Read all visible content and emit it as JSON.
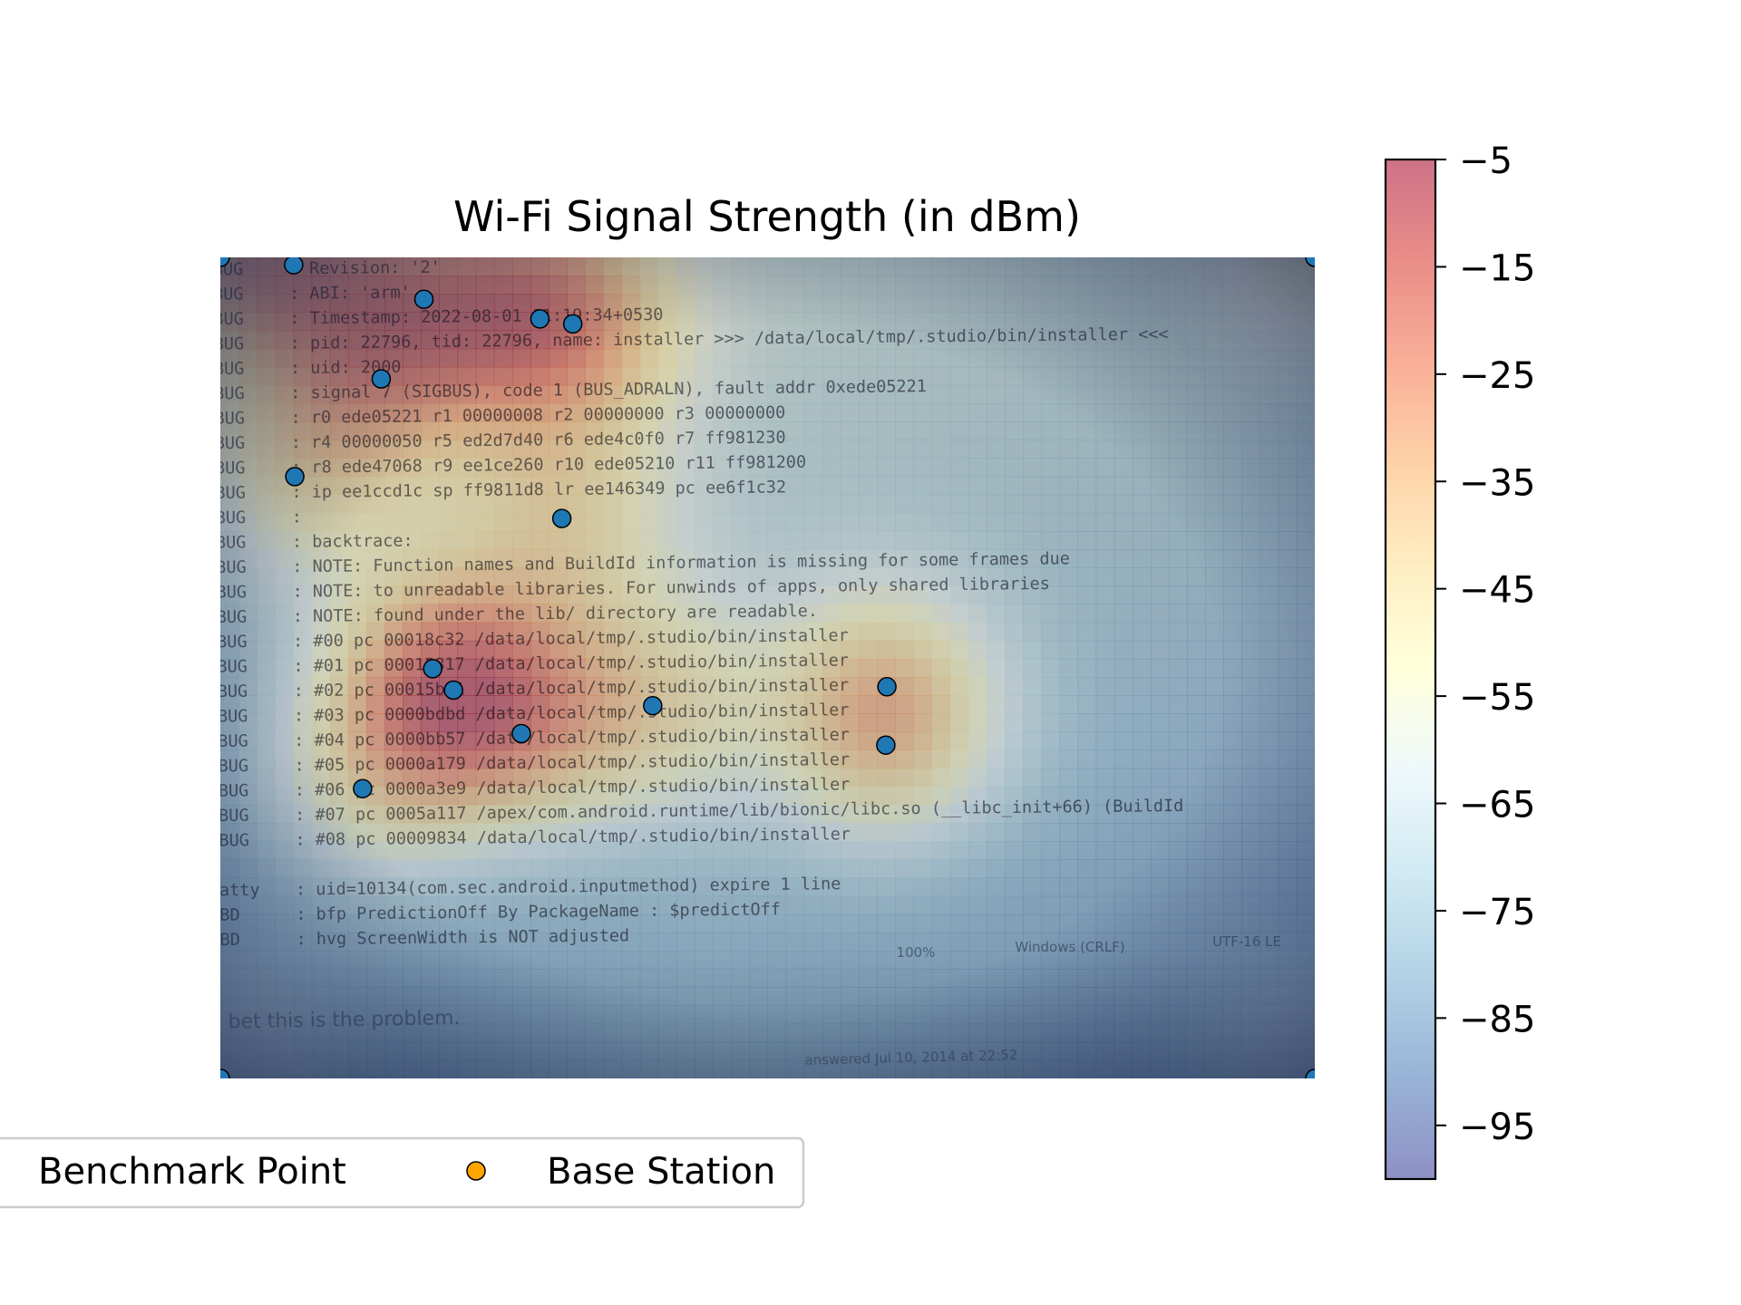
{
  "chart_data": {
    "type": "heatmap",
    "title": "Wi-Fi Signal Strength (in dBm)",
    "xlabel": "",
    "ylabel": "",
    "colorbar": {
      "min": -100,
      "max": -5,
      "ticks": [
        -5,
        -15,
        -25,
        -35,
        -45,
        -55,
        -65,
        -75,
        -85,
        -95
      ],
      "tick_labels": [
        "−5",
        "−15",
        "−25",
        "−35",
        "−45",
        "−55",
        "−65",
        "−75",
        "−85",
        "−95"
      ],
      "colormap": "RdYlBu_r",
      "colors": [
        "#313695",
        "#4575b4",
        "#74add1",
        "#abd9e9",
        "#e0f3f8",
        "#ffffbf",
        "#fee090",
        "#fdae61",
        "#f46d43",
        "#d73027",
        "#a50026"
      ]
    },
    "extent": {
      "x": [
        0,
        1
      ],
      "y": [
        0,
        1
      ]
    },
    "benchmark_points": [
      {
        "x": 0.067,
        "y": 0.991
      },
      {
        "x": 0.186,
        "y": 0.949
      },
      {
        "x": 0.292,
        "y": 0.925
      },
      {
        "x": 0.322,
        "y": 0.919
      },
      {
        "x": 0.147,
        "y": 0.852
      },
      {
        "x": 0.068,
        "y": 0.733
      },
      {
        "x": 0.312,
        "y": 0.682
      },
      {
        "x": 0.194,
        "y": 0.499
      },
      {
        "x": 0.213,
        "y": 0.473
      },
      {
        "x": 0.395,
        "y": 0.454
      },
      {
        "x": 0.609,
        "y": 0.477
      },
      {
        "x": 0.275,
        "y": 0.42
      },
      {
        "x": 0.608,
        "y": 0.406
      },
      {
        "x": 0.13,
        "y": 0.353
      },
      {
        "x": 0.0,
        "y": 1.0
      },
      {
        "x": 1.0,
        "y": 1.0
      },
      {
        "x": 0.0,
        "y": 0.0
      },
      {
        "x": 1.0,
        "y": 0.0
      }
    ],
    "legend": {
      "placement": "lower-left, below axes",
      "entries": [
        {
          "label": "Benchmark Point",
          "color": "#1f77b4"
        },
        {
          "label": "Base Station",
          "color": "#ffa500"
        }
      ]
    },
    "background_photo": {
      "lines": [
        {
          "prefix": "BUG",
          "text": ": Revision: '2'"
        },
        {
          "prefix": "BUG",
          "text": ": ABI: 'arm'"
        },
        {
          "prefix": "BUG",
          "text": ": Timestamp: 2022-08-01 11:19:34+0530"
        },
        {
          "prefix": "BUG",
          "text": ": pid: 22796, tid: 22796, name: installer  >>> /data/local/tmp/.studio/bin/installer <<<"
        },
        {
          "prefix": "BUG",
          "text": ": uid: 2000"
        },
        {
          "prefix": "BUG",
          "text": ": signal 7 (SIGBUS), code 1 (BUS_ADRALN), fault addr 0xede05221"
        },
        {
          "prefix": "BUG",
          "text": ":     r0  ede05221  r1  00000008  r2  00000000  r3  00000000"
        },
        {
          "prefix": "BUG",
          "text": ":     r4  00000050  r5  ed2d7d40  r6  ede4c0f0  r7  ff981230"
        },
        {
          "prefix": "BUG",
          "text": ":     r8  ede47068  r9  ee1ce260  r10 ede05210  r11 ff981200"
        },
        {
          "prefix": "BUG",
          "text": ":     ip  ee1ccd1c  sp  ff9811d8  lr  ee146349  pc  ee6f1c32"
        },
        {
          "prefix": "BUG",
          "text": ":"
        },
        {
          "prefix": "BUG",
          "text": ": backtrace:"
        },
        {
          "prefix": "BUG",
          "text": ":     NOTE: Function names and BuildId information is missing for some frames due"
        },
        {
          "prefix": "BUG",
          "text": ":     NOTE: to unreadable libraries. For unwinds of apps, only shared libraries"
        },
        {
          "prefix": "BUG",
          "text": ":     NOTE: found under the lib/ directory are readable."
        },
        {
          "prefix": "BUG",
          "text": ":       #00 pc 00018c32  /data/local/tmp/.studio/bin/installer"
        },
        {
          "prefix": "BUG",
          "text": ":       #01 pc 00015817  /data/local/tmp/.studio/bin/installer"
        },
        {
          "prefix": "BUG",
          "text": ":       #02 pc 00015bc1  /data/local/tmp/.studio/bin/installer"
        },
        {
          "prefix": "BUG",
          "text": ":       #03 pc 0000bdbd  /data/local/tmp/.studio/bin/installer"
        },
        {
          "prefix": "BUG",
          "text": ":       #04 pc 0000bb57  /data/local/tmp/.studio/bin/installer"
        },
        {
          "prefix": "BUG",
          "text": ":       #05 pc 0000a179  /data/local/tmp/.studio/bin/installer"
        },
        {
          "prefix": "BUG",
          "text": ":       #06 pc 0000a3e9  /data/local/tmp/.studio/bin/installer"
        },
        {
          "prefix": "BUG",
          "text": ":       #07 pc 0005a117  /apex/com.android.runtime/lib/bionic/libc.so (__libc_init+66) (BuildId"
        },
        {
          "prefix": "BUG",
          "text": ":       #08 pc 00009834  /data/local/tmp/.studio/bin/installer"
        },
        {
          "prefix": "",
          "text": ""
        },
        {
          "prefix": "atty",
          "text": ": uid=10134(com.sec.android.inputmethod) expire 1 line"
        },
        {
          "prefix": "BD",
          "text": ": bfp PredictionOff By PackageName : $predictOff"
        },
        {
          "prefix": "BD",
          "text": ": hvg ScreenWidth is NOT adjusted"
        }
      ],
      "status_bar": [
        "100%",
        "Windows (CRLF)",
        "UTF-16 LE"
      ],
      "footer_text": "I bet this is the problem.",
      "footer_meta": "answered Jul 10, 2014 at 22:52"
    }
  }
}
